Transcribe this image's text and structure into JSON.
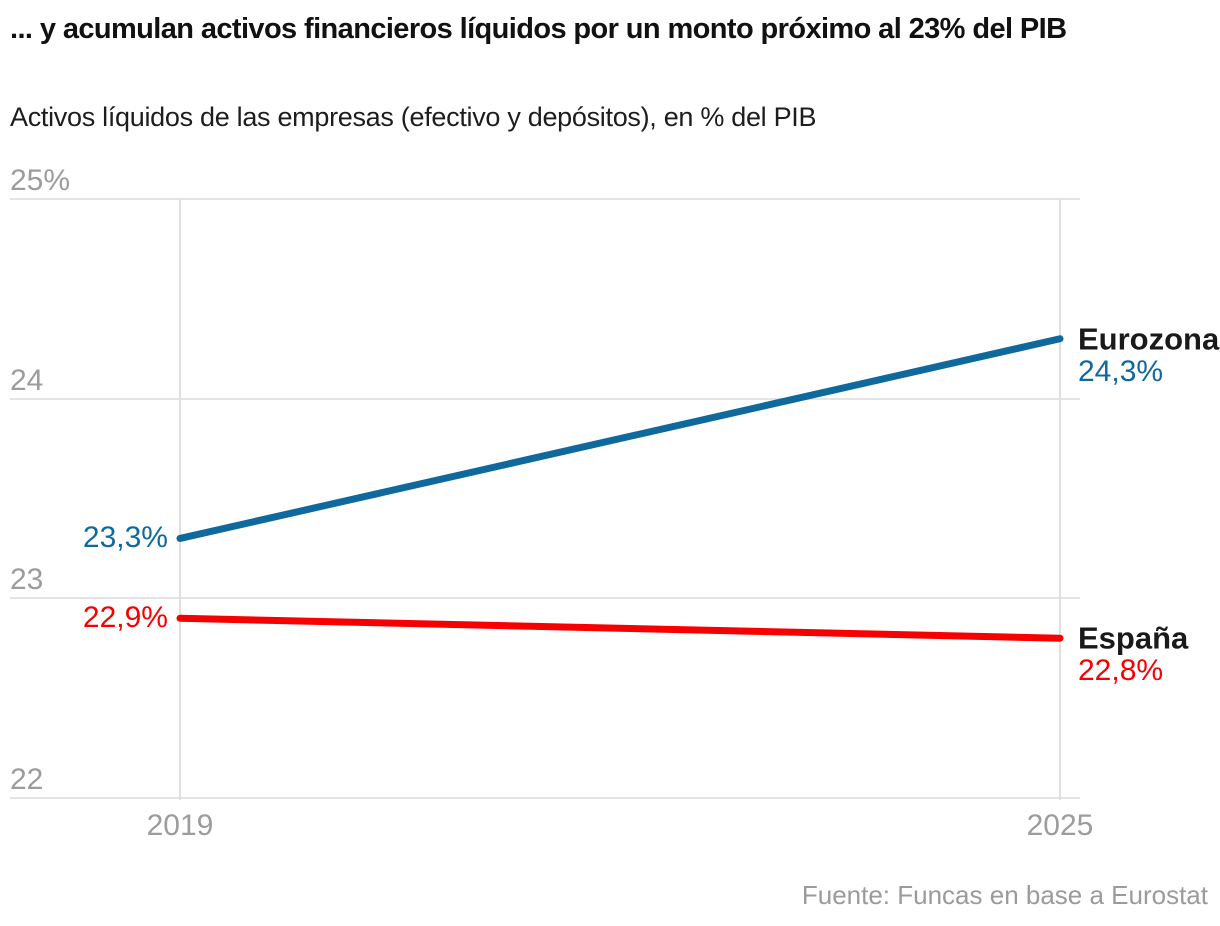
{
  "header": {
    "title": "... y acumulan activos financieros líquidos por un monto próximo al 23% del PIB",
    "subtitle": "Activos líquidos de las empresas (efectivo y depósitos), en % del PIB"
  },
  "chart_data": {
    "type": "line",
    "x": [
      2019,
      2025
    ],
    "x_tick_labels": [
      "2019",
      "2025"
    ],
    "xlim": [
      2019,
      2025
    ],
    "y_ticks": [
      25,
      24,
      23,
      22
    ],
    "y_tick_labels": [
      "25%",
      "24",
      "23",
      "22"
    ],
    "ylim": [
      22,
      25
    ],
    "grid": true,
    "legend_position": "right-of-line-ends",
    "series": [
      {
        "name": "Eurozona",
        "values": [
          23.3,
          24.3
        ],
        "color": "#10699c",
        "start_label": "23,3%",
        "end_label": "24,3%"
      },
      {
        "name": "España",
        "values": [
          22.9,
          22.8
        ],
        "color": "#f70000",
        "start_label": "22,9%",
        "end_label": "22,8%"
      }
    ]
  },
  "source": "Fuente: Funcas en base a Eurostat",
  "colors": {
    "eurozona_line": "#10699c",
    "espana_line": "#f70000",
    "axis_text": "#9c9c9c",
    "gridline": "#e4e4e4",
    "title_text": "#111111",
    "series_name_text": "#1a1a1a",
    "source_text": "#9b9b9b",
    "background": "#ffffff"
  }
}
